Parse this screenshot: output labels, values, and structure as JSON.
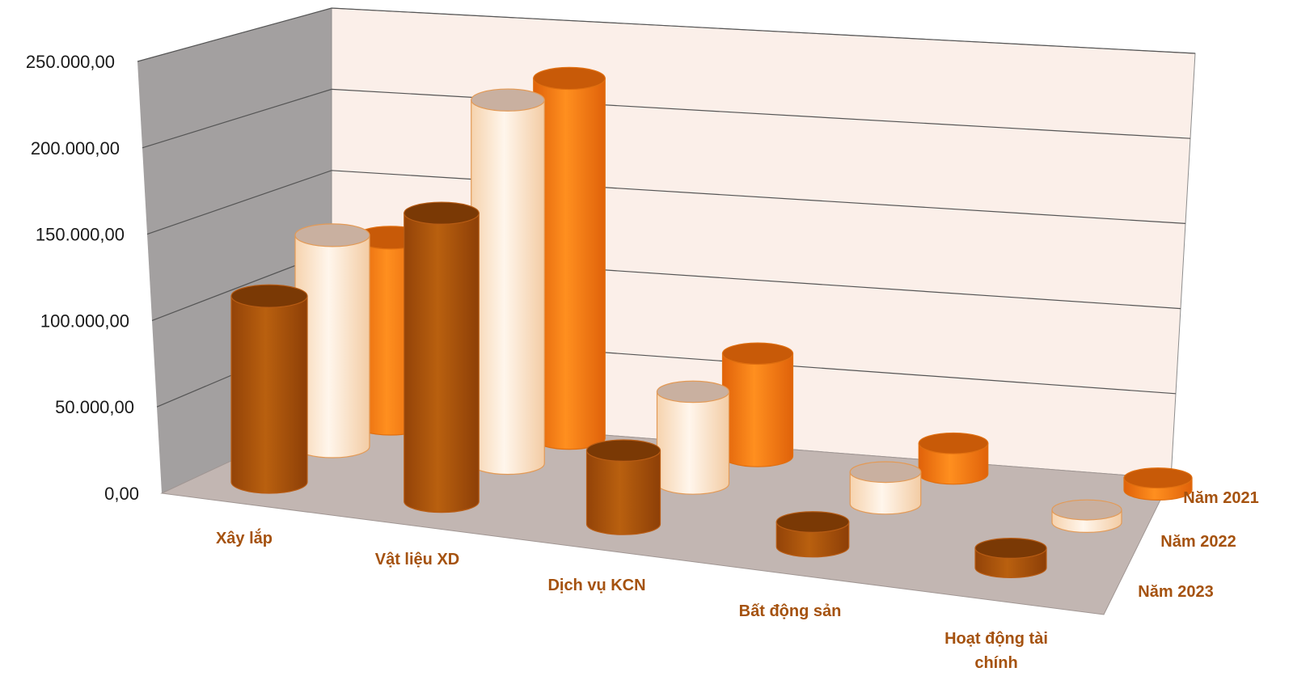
{
  "chart_data": {
    "type": "bar",
    "style": "3d-cylinder",
    "categories": [
      "Xây lắp",
      "Vật liệu XD",
      "Dịch vụ KCN",
      "Bất động sản",
      "Hoạt động tài chính"
    ],
    "series": [
      {
        "name": "Năm 2021",
        "values": [
          116000,
          228000,
          66000,
          20000,
          8000
        ]
      },
      {
        "name": "Năm 2022",
        "values": [
          127000,
          222000,
          57000,
          20000,
          8000
        ]
      },
      {
        "name": "Năm 2023",
        "values": [
          108000,
          170000,
          44000,
          15000,
          12000
        ]
      }
    ],
    "y_ticks": [
      "0,00",
      "50.000,00",
      "100.000,00",
      "150.000,00",
      "200.000,00",
      "250.000,00"
    ],
    "ylim": [
      0,
      250000
    ],
    "grid": true,
    "legend": "none",
    "colors": {
      "Năm 2021": "#ff7f0e",
      "Năm 2022": "#fde3c8",
      "Năm 2023": "#a9500d",
      "floor": "#c2b6b2",
      "side_wall": "#a3a0a0",
      "back_wall": "#fbefe9",
      "gridline": "#555555",
      "label": "#a5520f"
    }
  }
}
